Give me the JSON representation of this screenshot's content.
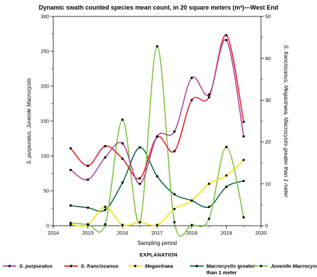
{
  "chart_data": {
    "type": "line",
    "title": "Dynamic swath counted species mean count, in 20 square meters (m²)—West End",
    "xlabel": "Sampling period",
    "ylabel_left": "S. purpuratus, Juvenile Macrocystis",
    "ylabel_right": "S. franciscanus, Megastraea, Macrocystis greater than 1 meter",
    "xlim": [
      2014,
      2020
    ],
    "ylim_left": [
      0,
      300
    ],
    "ylim_right": [
      0,
      50
    ],
    "x_ticks": [
      "2014",
      "2015",
      "2016",
      "2017",
      "2018",
      "2019",
      "2020"
    ],
    "y_ticks_left": [
      "0",
      "50",
      "100",
      "150",
      "200",
      "250",
      "300"
    ],
    "y_ticks_right": [
      "0",
      "10",
      "20",
      "30",
      "40",
      "50"
    ],
    "legend_title": "EXPLANATION",
    "legend_position": "bottom",
    "series": [
      {
        "name": "S. purpuratus",
        "axis": "left",
        "color": "#b0449e",
        "x": [
          2014.5,
          2015.0,
          2015.5,
          2016.0,
          2016.5,
          2017.0,
          2017.5,
          2018.0,
          2018.5,
          2019.0,
          2019.5
        ],
        "y": [
          80,
          66,
          98,
          118,
          60,
          128,
          135,
          212,
          188,
          266,
          128
        ]
      },
      {
        "name": "S. franciscanus",
        "axis": "right",
        "color": "#e51f25",
        "x": [
          2014.5,
          2015.0,
          2015.5,
          2016.0,
          2016.5,
          2017.0,
          2017.5,
          2018.0,
          2018.5,
          2019.0,
          2019.5
        ],
        "y": [
          18.5,
          14.3,
          19.0,
          16.0,
          11.3,
          21.2,
          17.8,
          30.0,
          30.7,
          45.5,
          24.8
        ]
      },
      {
        "name": "Megastraea",
        "axis": "right",
        "color": "#f2e300",
        "x": [
          2014.5,
          2015.0,
          2015.5,
          2016.0,
          2016.5,
          2017.0,
          2017.5,
          2018.0,
          2018.5,
          2019.0,
          2019.5
        ],
        "y": [
          0.3,
          0.2,
          4.5,
          0.2,
          0.8,
          0.2,
          4.0,
          6.0,
          10.0,
          12.0,
          15.7
        ]
      },
      {
        "name": "Macrocystis greater than 1 meter",
        "axis": "right",
        "color": "#0b6b3a",
        "x": [
          2014.5,
          2015.0,
          2015.5,
          2016.0,
          2016.5,
          2017.0,
          2017.5,
          2018.0,
          2018.5,
          2019.0,
          2019.5
        ],
        "y": [
          4.8,
          4.3,
          3.8,
          10.3,
          18.7,
          11.8,
          7.5,
          6.0,
          4.5,
          9.3,
          10.7
        ]
      },
      {
        "name": "Juvenile Macrocystis",
        "axis": "left",
        "color": "#7cc142",
        "x": [
          2014.5,
          2015.0,
          2015.5,
          2016.0,
          2016.5,
          2017.0,
          2017.5,
          2018.0,
          2018.5,
          2019.0,
          2019.5
        ],
        "y": [
          4,
          2,
          2,
          152,
          5,
          257,
          5,
          1,
          10,
          113,
          12
        ]
      }
    ]
  }
}
